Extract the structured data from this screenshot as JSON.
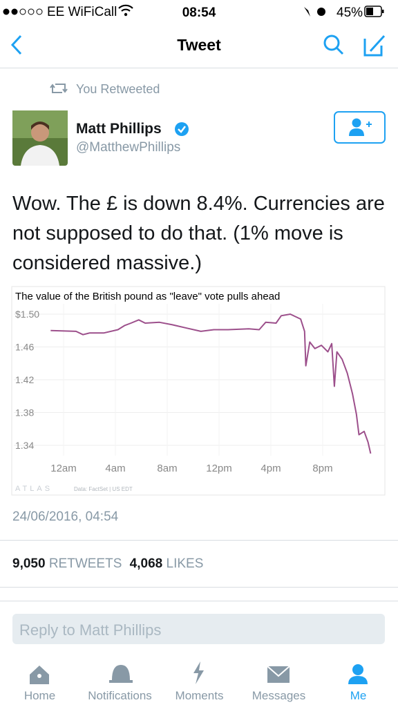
{
  "status_bar": {
    "carrier": "EE WiFiCall",
    "time": "08:54",
    "battery": "45%"
  },
  "nav": {
    "title": "Tweet"
  },
  "tweet": {
    "context": "You Retweeted",
    "author_name": "Matt Phillips",
    "author_handle": "@MatthewPhillips",
    "text": "Wow. The £ is down 8.4%. Currencies are not supposed to do that. (1% move is considered massive.)",
    "chart": {
      "type": "line",
      "title": "The value of the British pound as \"leave\" vote pulls ahead",
      "source_brand": "ATLAS",
      "source_note": "Data: FactSet | US EDT",
      "x": [
        -1.0,
        0.96,
        1.5,
        2.0,
        3.1,
        4.2,
        4.7,
        5.2,
        5.8,
        6.3,
        7.4,
        8.4,
        9.5,
        10.6,
        11.6,
        12.7,
        14.3,
        15.1,
        15.6,
        16.4,
        16.8,
        17.5,
        18.3,
        18.6,
        18.7,
        19.0,
        19.4,
        19.9,
        20.4,
        20.7,
        20.9,
        21.1,
        21.5,
        21.9,
        22.3,
        22.6,
        22.8,
        23.2,
        23.5,
        23.7
      ],
      "values": [
        1.48,
        1.479,
        1.475,
        1.477,
        1.477,
        1.481,
        1.486,
        1.489,
        1.493,
        1.489,
        1.49,
        1.487,
        1.483,
        1.479,
        1.481,
        1.481,
        1.482,
        1.481,
        1.49,
        1.489,
        1.498,
        1.5,
        1.494,
        1.479,
        1.437,
        1.466,
        1.458,
        1.462,
        1.454,
        1.464,
        1.412,
        1.454,
        1.445,
        1.428,
        1.403,
        1.378,
        1.353,
        1.357,
        1.344,
        1.33
      ],
      "color": "#9c4f8b",
      "xlim": [
        -3.84,
        24.8
      ],
      "xticks": [
        {
          "value": 0,
          "label": "12am"
        },
        {
          "value": 4,
          "label": "4am"
        },
        {
          "value": 8,
          "label": "8am"
        },
        {
          "value": 12,
          "label": "12pm"
        },
        {
          "value": 16,
          "label": "4pm"
        },
        {
          "value": 20,
          "label": "8pm"
        }
      ],
      "ylim": [
        1.3274,
        1.5126
      ],
      "yticks": [
        {
          "value": 1.5,
          "label": "$1.50"
        },
        1.46,
        1.42,
        1.38,
        1.34
      ],
      "grid": true
    },
    "timestamp": "24/06/2016, 04:54",
    "retweets_count": "9,050",
    "retweets_label": "RETWEETS",
    "likes_count": "4,068",
    "likes_label": "LIKES"
  },
  "reply": {
    "placeholder": "Reply to Matt Phillips"
  },
  "tabs": [
    "Home",
    "Notifications",
    "Moments",
    "Messages",
    "Me"
  ]
}
